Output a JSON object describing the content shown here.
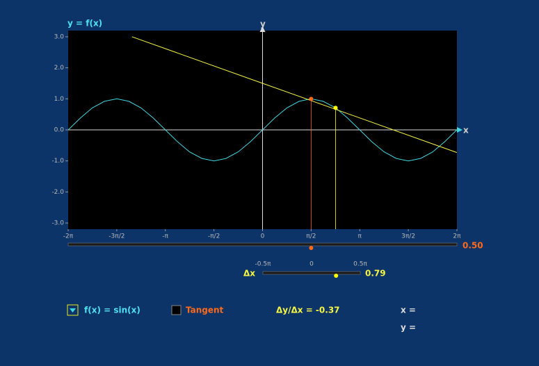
{
  "chart_data": {
    "type": "line",
    "title": "y = f(x)",
    "x_label": "x",
    "y_label": "y",
    "xlim": [
      -6.283,
      6.283
    ],
    "ylim": [
      -3.2,
      3.2
    ],
    "xticks": [
      {
        "value": -6.283,
        "label": "-2π"
      },
      {
        "value": -4.712,
        "label": "-3π/2"
      },
      {
        "value": -3.142,
        "label": "-π"
      },
      {
        "value": -1.571,
        "label": "-π/2"
      },
      0,
      {
        "value": 1.571,
        "label": "π/2"
      },
      {
        "value": 3.142,
        "label": "π"
      },
      {
        "value": 4.712,
        "label": "3π/2"
      },
      {
        "value": 6.283,
        "label": "2π"
      }
    ],
    "yticks": [
      {
        "value": -3,
        "label": "-3.0"
      },
      {
        "value": -2,
        "label": "-2.0"
      },
      {
        "value": -1,
        "label": "-1.0"
      },
      {
        "value": 0,
        "label": "0.0"
      },
      {
        "value": 1,
        "label": "1.0"
      },
      {
        "value": 2,
        "label": "2.0"
      },
      {
        "value": 3,
        "label": "3.0"
      }
    ],
    "series": [
      {
        "name": "f(x) = sin(x)",
        "color": "#3fd8e0",
        "x": [
          -6.28,
          -5.89,
          -5.5,
          -5.11,
          -4.71,
          -4.32,
          -3.93,
          -3.53,
          -3.14,
          -2.75,
          -2.36,
          -1.96,
          -1.57,
          -1.18,
          -0.79,
          -0.39,
          0,
          0.39,
          0.79,
          1.18,
          1.57,
          1.96,
          2.36,
          2.75,
          3.14,
          3.53,
          3.93,
          4.32,
          4.71,
          5.11,
          5.5,
          5.89,
          6.28
        ],
        "values": [
          0,
          0.38,
          0.71,
          0.92,
          1,
          0.92,
          0.71,
          0.38,
          0,
          -0.38,
          -0.71,
          -0.92,
          -1,
          -0.92,
          -0.71,
          -0.38,
          0,
          0.38,
          0.71,
          0.92,
          1,
          0.92,
          0.71,
          0.38,
          0,
          -0.38,
          -0.71,
          -0.92,
          -1,
          -0.92,
          -0.71,
          -0.38,
          0
        ]
      },
      {
        "name": "Tangent",
        "color": "#f5f542",
        "x": [
          -4.22,
          6.28
        ],
        "values": [
          3.0,
          -0.73
        ]
      }
    ],
    "points": [
      {
        "x": 1.57,
        "y": 1.0,
        "color": "#ff6a1a"
      },
      {
        "x": 2.36,
        "y": 0.71,
        "color": "#ffff00"
      }
    ]
  },
  "x_slider": {
    "min": -2,
    "max": 2,
    "value": 0.5,
    "value_label": "0.50"
  },
  "dx_slider": {
    "label": "Δx",
    "min": -1.571,
    "max": 1.571,
    "value": 0.79,
    "ticks": [
      {
        "value": -1.571,
        "label": "-0.5π"
      },
      0,
      {
        "value": 1.571,
        "label": "0.5π"
      }
    ]
  },
  "controls": {
    "function": "f(x) = sin(x)",
    "tangent": "Tangent",
    "slope": "Δy/Δx = -0.37",
    "x_readout": "x =",
    "y_readout": "y ="
  }
}
